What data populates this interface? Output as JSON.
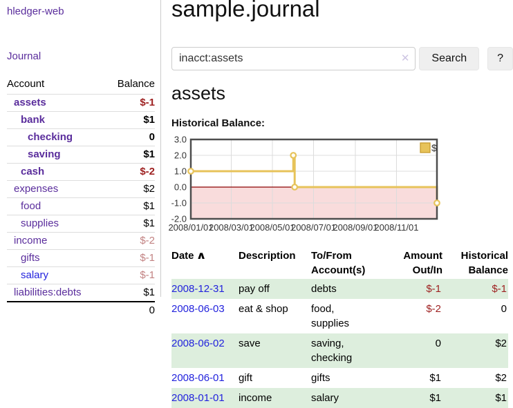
{
  "colors": {
    "link_purple": "#5a2d9c",
    "link_blue": "#2222dd",
    "negative_strong": "#9e2121",
    "negative_soft": "#c28282",
    "row_green": "#ddeedd"
  },
  "sidebar": {
    "brand": "hledger-web",
    "journal_link": "Journal",
    "accounts": {
      "col_account": "Account",
      "col_balance": "Balance",
      "rows": [
        {
          "name": "assets",
          "indent": 1,
          "emphasis": true,
          "balance": "$-1",
          "balance_tone": "negative-strong",
          "link_tone": "purple"
        },
        {
          "name": "bank",
          "indent": 2,
          "emphasis": true,
          "balance": "$1",
          "balance_tone": "normal",
          "link_tone": "purple"
        },
        {
          "name": "checking",
          "indent": 3,
          "emphasis": true,
          "balance": "0",
          "balance_tone": "normal",
          "link_tone": "purple"
        },
        {
          "name": "saving",
          "indent": 3,
          "emphasis": true,
          "balance": "$1",
          "balance_tone": "normal",
          "link_tone": "purple"
        },
        {
          "name": "cash",
          "indent": 2,
          "emphasis": true,
          "balance": "$-2",
          "balance_tone": "negative-strong",
          "link_tone": "purple"
        },
        {
          "name": "expenses",
          "indent": 1,
          "emphasis": false,
          "balance": "$2",
          "balance_tone": "normal",
          "link_tone": "purple"
        },
        {
          "name": "food",
          "indent": 2,
          "emphasis": false,
          "balance": "$1",
          "balance_tone": "normal",
          "link_tone": "purple"
        },
        {
          "name": "supplies",
          "indent": 2,
          "emphasis": false,
          "balance": "$1",
          "balance_tone": "normal",
          "link_tone": "purple"
        },
        {
          "name": "income",
          "indent": 1,
          "emphasis": false,
          "balance": "$-2",
          "balance_tone": "negative-soft",
          "link_tone": "purple"
        },
        {
          "name": "gifts",
          "indent": 2,
          "emphasis": false,
          "balance": "$-1",
          "balance_tone": "negative-soft",
          "link_tone": "purple"
        },
        {
          "name": "salary",
          "indent": 2,
          "emphasis": false,
          "balance": "$-1",
          "balance_tone": "negative-soft",
          "link_tone": "blue"
        },
        {
          "name": "liabilities:debts",
          "indent": 1,
          "emphasis": false,
          "balance": "$1",
          "balance_tone": "normal",
          "link_tone": "purple"
        }
      ],
      "total": "0"
    }
  },
  "main": {
    "title": "sample.journal",
    "search": {
      "query": "inacct:assets",
      "clear_icon": "✕",
      "button_label": "Search",
      "help_label": "?"
    },
    "account_heading": "assets",
    "chart_label": "Historical Balance:"
  },
  "chart_data": {
    "type": "line",
    "title": "Historical Balance",
    "step": true,
    "series": [
      {
        "name": "$",
        "color": "#e7c35a",
        "points": [
          [
            "2008-01-01",
            1
          ],
          [
            "2008-06-01",
            2
          ],
          [
            "2008-06-03",
            0
          ],
          [
            "2008-12-31",
            -1
          ]
        ]
      }
    ],
    "xlim": [
      "2008-01-01",
      "2008-12-31"
    ],
    "ylim": [
      -2,
      3
    ],
    "yticks": [
      {
        "value": 3,
        "label": "3.0"
      },
      {
        "value": 2,
        "label": "2.0"
      },
      {
        "value": 1,
        "label": "1.0"
      },
      {
        "value": 0,
        "label": "0.0"
      },
      {
        "value": -1,
        "label": "-1.0"
      },
      {
        "value": -2,
        "label": "-2.0"
      }
    ],
    "xticks": [
      {
        "date": "2008-01-01",
        "label": "2008/01/01"
      },
      {
        "date": "2008-03-01",
        "label": "2008/03/01"
      },
      {
        "date": "2008-05-01",
        "label": "2008/05/01"
      },
      {
        "date": "2008-07-01",
        "label": "2008/07/01"
      },
      {
        "date": "2008-09-01",
        "label": "2008/09/01"
      },
      {
        "date": "2008-11-01",
        "label": "2008/11/01"
      }
    ],
    "grid": true,
    "grid_color": "#dcdcdc",
    "border_color": "#4d4d4d",
    "negative_region_color": "#f9dcdc",
    "zero_line_color": "#8b0000",
    "legend_border": "#c79b2e",
    "legend_position": "top-right"
  },
  "transactions": {
    "columns": [
      "Date",
      "Description",
      "To/From Account(s)",
      "Amount Out/In",
      "Historical Balance"
    ],
    "sort_icon": "∧",
    "rows": [
      {
        "date": "2008-12-31",
        "description": "pay off",
        "accounts": "debts",
        "amount": "$-1",
        "amount_negative": true,
        "balance": "$-1",
        "balance_negative": true,
        "shaded": true
      },
      {
        "date": "2008-06-03",
        "description": "eat & shop",
        "accounts": "food, supplies",
        "amount": "$-2",
        "amount_negative": true,
        "balance": "0",
        "balance_negative": false,
        "shaded": false
      },
      {
        "date": "2008-06-02",
        "description": "save",
        "accounts": "saving, checking",
        "amount": "0",
        "amount_negative": false,
        "balance": "$2",
        "balance_negative": false,
        "shaded": true
      },
      {
        "date": "2008-06-01",
        "description": "gift",
        "accounts": "gifts",
        "amount": "$1",
        "amount_negative": false,
        "balance": "$2",
        "balance_negative": false,
        "shaded": false
      },
      {
        "date": "2008-01-01",
        "description": "income",
        "accounts": "salary",
        "amount": "$1",
        "amount_negative": false,
        "balance": "$1",
        "balance_negative": false,
        "shaded": true
      }
    ]
  }
}
